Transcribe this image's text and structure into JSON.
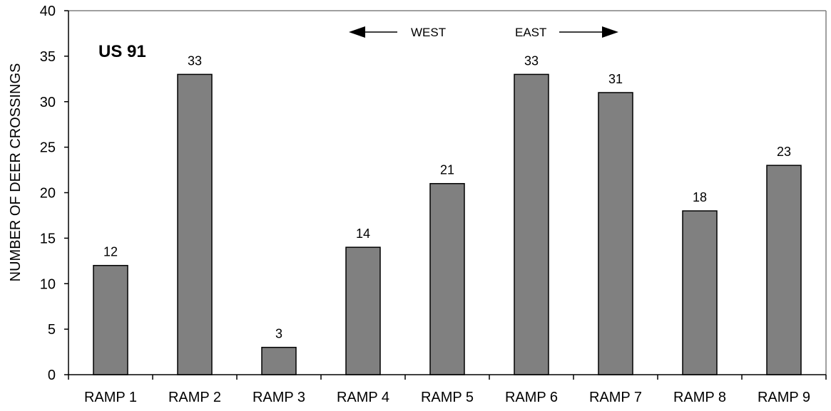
{
  "chart_data": {
    "type": "bar",
    "categories": [
      "RAMP 1",
      "RAMP 2",
      "RAMP 3",
      "RAMP 4",
      "RAMP 5",
      "RAMP 6",
      "RAMP 7",
      "RAMP 8",
      "RAMP 9"
    ],
    "series": [
      {
        "values": [
          12,
          33,
          3,
          14,
          21,
          33,
          31,
          18,
          23
        ]
      }
    ],
    "data_labels": [
      "12",
      "33",
      "3",
      "14",
      "21",
      "33",
      "31",
      "18",
      "23"
    ],
    "title": "",
    "xlabel": "",
    "ylabel": "NUMBER OF DEER CROSSINGS",
    "ylim": [
      0,
      40
    ],
    "yticks": [
      "0",
      "5",
      "10",
      "15",
      "20",
      "25",
      "30",
      "35",
      "40"
    ],
    "grid": false,
    "legend": "none",
    "annotations": {
      "panel_label": "US 91",
      "west_label": "WEST",
      "east_label": "EAST"
    },
    "colors": {
      "bar_fill": "#808080",
      "bar_stroke": "#000000",
      "axis": "#000000",
      "frame": "#808080"
    }
  }
}
